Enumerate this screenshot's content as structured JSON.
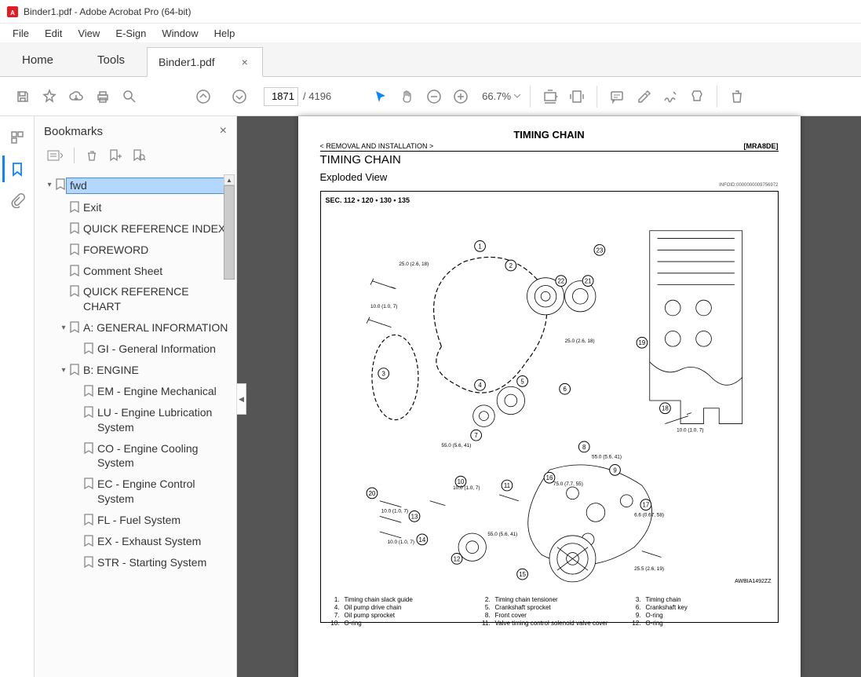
{
  "titlebar": "Binder1.pdf - Adobe Acrobat Pro (64-bit)",
  "menu": [
    "File",
    "Edit",
    "View",
    "E-Sign",
    "Window",
    "Help"
  ],
  "tabs": {
    "home": "Home",
    "tools": "Tools",
    "doc": "Binder1.pdf"
  },
  "page": {
    "current": "1871",
    "total": "4196"
  },
  "zoom": "66.7%",
  "bookmarks_panel": {
    "title": "Bookmarks"
  },
  "bm": [
    {
      "lbl": "fwd",
      "indent": 0,
      "tw": "v",
      "sel": true
    },
    {
      "lbl": "Exit",
      "indent": 1
    },
    {
      "lbl": "QUICK REFERENCE INDEX",
      "indent": 1
    },
    {
      "lbl": "FOREWORD",
      "indent": 1
    },
    {
      "lbl": "Comment Sheet",
      "indent": 1
    },
    {
      "lbl": "QUICK REFERENCE CHART",
      "indent": 1
    },
    {
      "lbl": "A: GENERAL INFORMATION",
      "indent": 1,
      "tw": "v"
    },
    {
      "lbl": "GI - General Information",
      "indent": 2
    },
    {
      "lbl": "B: ENGINE",
      "indent": 1,
      "tw": "v"
    },
    {
      "lbl": "EM - Engine Mechanical",
      "indent": 2
    },
    {
      "lbl": "LU - Engine Lubrication System",
      "indent": 2
    },
    {
      "lbl": "CO - Engine Cooling System",
      "indent": 2
    },
    {
      "lbl": "EC - Engine Control System",
      "indent": 2
    },
    {
      "lbl": "FL - Fuel System",
      "indent": 2
    },
    {
      "lbl": "EX - Exhaust System",
      "indent": 2
    },
    {
      "lbl": "STR - Starting System",
      "indent": 2
    }
  ],
  "doc": {
    "head": "TIMING CHAIN",
    "sub_l": "< REMOVAL AND INSTALLATION >",
    "sub_r": "[MRA8DE]",
    "h2": "TIMING CHAIN",
    "h3": "Exploded View",
    "infoid": "INFOID:0000000009756972",
    "sec": "SEC. 112 • 120 • 130 • 135",
    "code": "AWBIA1492ZZ",
    "torque": {
      "t1": "25.0 (2.6, 18)",
      "t2": "10.0 (1.0, 7)",
      "t3": "25.0 (2.6, 18)",
      "t4": "55.0 (5.6, 41)",
      "t5": "10.0 (1.0, 7)",
      "t6": "55.0 (5.6, 41)",
      "t7": "10.0 (1.0, 7)",
      "t8": "75.0 (7.7, 55)",
      "t9": "10.0 (1.0, 7)",
      "t10": "6.6 (0.67, 58)",
      "t11": "10.0 (1.0, 7)",
      "t12": "55.0 (5.6, 41)",
      "t13": "25.5 (2.6, 19)"
    },
    "legend": [
      [
        "1.",
        "Timing chain slack guide",
        "2.",
        "Timing chain tensioner",
        "3.",
        "Timing chain"
      ],
      [
        "4.",
        "Oil pump drive chain",
        "5.",
        "Crankshaft sprocket",
        "6.",
        "Crankshaft key"
      ],
      [
        "7.",
        "Oil pump sprocket",
        "8.",
        "Front cover",
        "9.",
        "O-ring"
      ],
      [
        "10.",
        "O-ring",
        "11.",
        "Valve timing control solenoid valve cover",
        "12.",
        "O-ring"
      ]
    ]
  }
}
